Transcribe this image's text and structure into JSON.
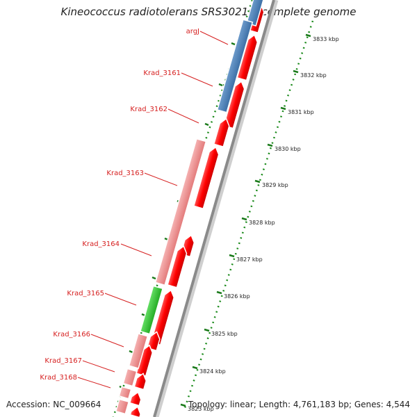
{
  "title": "Kineococcus radiotolerans SRS30216, complete genome",
  "accession": "Accession: NC_009664",
  "summary": "Topology: linear; Length: 4,761,183 bp; Genes: 4,544",
  "colors": {
    "forward_cds": "#ff0000",
    "pale_cds": "#f08c8c",
    "blue_cds": "#4a7fb5",
    "green_cds": "#33cc33",
    "label_text": "#d62020",
    "tick": "#1a7a1a",
    "backbone": "#8a8a8a"
  },
  "genes": [
    {
      "label": "argJ",
      "track": "blue"
    },
    {
      "label": "Krad_3161",
      "track": "forward"
    },
    {
      "label": "Krad_3162",
      "track": "forward"
    },
    {
      "label": "Krad_3163",
      "track": "pale"
    },
    {
      "label": "Krad_3164",
      "track": "forward"
    },
    {
      "label": "Krad_3165",
      "track": "green"
    },
    {
      "label": "Krad_3166",
      "track": "pale"
    },
    {
      "label": "Krad_3167",
      "track": "pale"
    },
    {
      "label": "Krad_3168",
      "track": "pale"
    }
  ],
  "scale_labels": [
    "3833 kbp",
    "3832 kbp",
    "3831 kbp",
    "3830 kbp",
    "3829 kbp",
    "3828 kbp",
    "3827 kbp",
    "3826 kbp",
    "3825 kbp",
    "3824 kbp",
    "3823 kbp"
  ]
}
